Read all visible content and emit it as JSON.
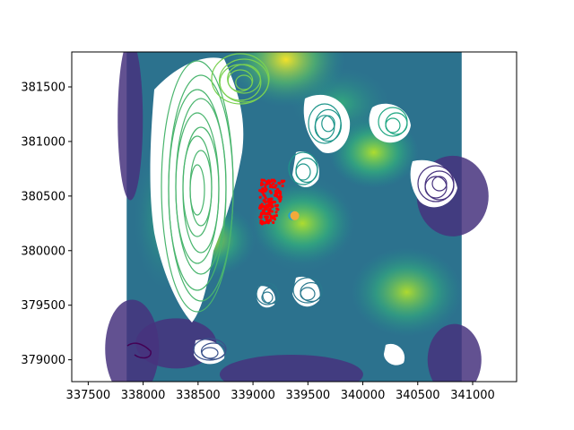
{
  "chart_data": {
    "type": "contour",
    "title": "",
    "xlabel": "",
    "ylabel": "",
    "xlim": [
      337350,
      341400
    ],
    "ylim": [
      378800,
      381820
    ],
    "grid": false,
    "legend": "none",
    "xticks": [
      337500,
      338000,
      338500,
      339000,
      339500,
      340000,
      340500,
      341000
    ],
    "yticks": [
      379000,
      379500,
      380000,
      380500,
      381000,
      381500
    ],
    "xtick_labels": [
      "337500",
      "338000",
      "338500",
      "339000",
      "339500",
      "340000",
      "340500",
      "341000"
    ],
    "ytick_labels": [
      "379000",
      "379500",
      "380000",
      "380500",
      "381000",
      "381500"
    ],
    "colormap": "viridis",
    "data_extent": {
      "x": [
        337850,
        340900
      ],
      "y": [
        378800,
        381820
      ]
    },
    "field_peaks": [
      {
        "x": 339300,
        "y": 381750,
        "level": 0.95
      },
      {
        "x": 340400,
        "y": 379620,
        "level": 0.85
      },
      {
        "x": 339450,
        "y": 380250,
        "level": 0.7
      },
      {
        "x": 338600,
        "y": 380100,
        "level": 0.6
      },
      {
        "x": 340100,
        "y": 380900,
        "level": 0.55
      }
    ],
    "red_points_region": {
      "x": [
        339000,
        339300
      ],
      "y": [
        380200,
        380650
      ]
    },
    "marker_points": [
      {
        "x": 339360,
        "y": 380320,
        "color": "#29a3c6"
      },
      {
        "x": 339380,
        "y": 380320,
        "color": "#f2a93b"
      }
    ],
    "colors": {
      "contour_low": "#440154",
      "contour_mid": "#21918c",
      "contour_high": "#fde725",
      "points": "#ff0000"
    }
  }
}
